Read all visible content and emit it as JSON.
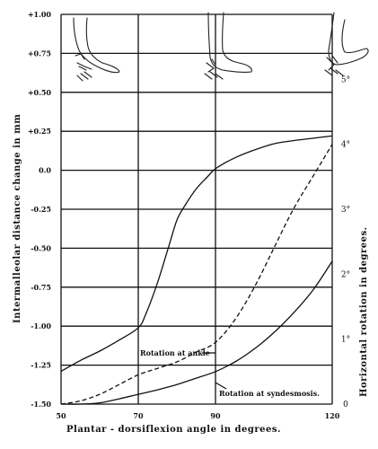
{
  "chart_data": {
    "type": "line",
    "xlabel": "Plantar - dorsiflexion angle in degrees.",
    "ylabel": "Intermalleolar distance change in mm",
    "y2label": "Horizontal rotation in degrees.",
    "xlim": [
      50,
      120
    ],
    "ylim": [
      -1.5,
      1.0
    ],
    "y2lim": [
      0,
      6
    ],
    "x_ticks": [
      "50",
      "70",
      "90",
      "120"
    ],
    "y_ticks": [
      "+1.00",
      "+0.75",
      "+0.50",
      "+0.25",
      "0.0",
      "-0.25",
      "-0.50",
      "-0.75",
      "-1.00",
      "-1.25",
      "-1.50"
    ],
    "y2_ticks": [
      "0",
      "1°",
      "2°",
      "3°",
      "4°",
      "5°"
    ],
    "grid": true,
    "annotations": {
      "ankle": "Rotation at ankle",
      "syndesmosis": "Rotation at syndesmosis."
    },
    "series": [
      {
        "axis": "left",
        "style": "solid",
        "x": [
          50,
          55,
          60,
          65,
          70,
          72,
          75,
          78,
          80,
          82,
          85,
          88,
          90,
          95,
          100,
          105,
          110,
          115,
          120
        ],
        "y": [
          -1.29,
          -1.22,
          -1.16,
          -1.09,
          -1.01,
          -0.92,
          -0.72,
          -0.48,
          -0.32,
          -0.23,
          -0.12,
          -0.04,
          0.01,
          0.08,
          0.13,
          0.17,
          0.19,
          0.205,
          0.22
        ]
      },
      {
        "axis": "right",
        "style": "dashed",
        "name": "Rotation at ankle",
        "x": [
          50,
          55,
          60,
          65,
          70,
          75,
          80,
          85,
          90,
          95,
          100,
          105,
          110,
          115,
          120
        ],
        "y": [
          0,
          0.05,
          0.15,
          0.3,
          0.45,
          0.55,
          0.65,
          0.8,
          0.95,
          1.3,
          1.8,
          2.4,
          3.0,
          3.5,
          4.0
        ]
      },
      {
        "axis": "right",
        "style": "solid",
        "name": "Rotation at syndesmosis.",
        "x": [
          50,
          55,
          60,
          65,
          70,
          75,
          80,
          85,
          90,
          95,
          100,
          105,
          110,
          115,
          120
        ],
        "y": [
          0,
          0,
          0.02,
          0.08,
          0.15,
          0.22,
          0.3,
          0.4,
          0.5,
          0.65,
          0.85,
          1.1,
          1.4,
          1.75,
          2.2
        ]
      }
    ]
  }
}
